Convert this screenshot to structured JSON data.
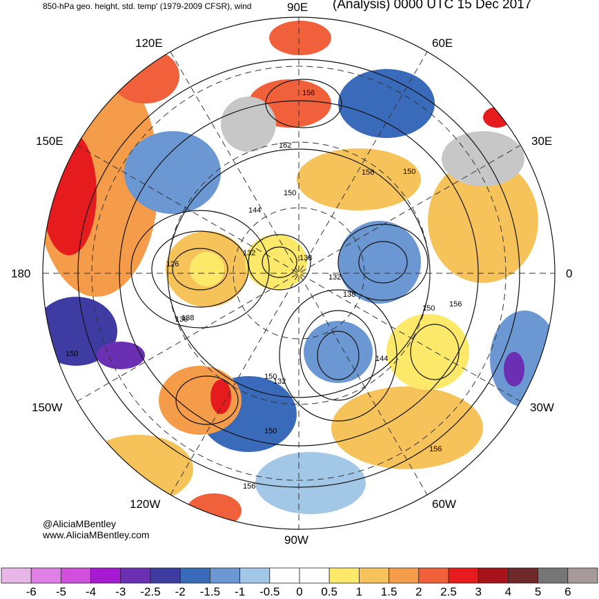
{
  "header": {
    "field_title": "850-hPa geo. height, std. temp' (1979-2009 CFSR), wind",
    "valid_time": "(Analysis) 0000 UTC 15 Dec 2017"
  },
  "longitude_labels": {
    "e90": "90E",
    "e120": "120E",
    "e60": "60E",
    "e150": "150E",
    "e30": "30E",
    "e180": "180",
    "e0": "0",
    "w150": "150W",
    "w30": "30W",
    "w120": "120W",
    "w60": "60W",
    "w90": "90W"
  },
  "contour_labels": [
    "156",
    "162",
    "156",
    "150",
    "150",
    "144",
    "132",
    "138",
    "126",
    "138",
    "132",
    "138",
    "150",
    "156",
    "144",
    "132",
    "150",
    "150",
    "156",
    "156",
    "150",
    "138"
  ],
  "credits": {
    "handle": "@AliciaMBentley",
    "website": "www.AliciaMBentley.com"
  },
  "colorbar": {
    "colors": [
      "#e7b6e6",
      "#e080e4",
      "#d04fdc",
      "#a81ad2",
      "#6b2fb3",
      "#3e3ca2",
      "#3a6bbb",
      "#6b97d2",
      "#a3c7e6",
      "#ffffff",
      "#ffffff",
      "#fce96a",
      "#f6c35a",
      "#f49c4a",
      "#f0603a",
      "#e51b1e",
      "#a8131a",
      "#6e2a2a",
      "#777676",
      "#a69a9a"
    ],
    "ticks": [
      "-6",
      "-5",
      "-4",
      "-3",
      "-2.5",
      "-2",
      "-1.5",
      "-1",
      "-0.5",
      "0",
      "0.5",
      "1",
      "1.5",
      "2",
      "2.5",
      "3",
      "4",
      "5",
      "6"
    ]
  }
}
